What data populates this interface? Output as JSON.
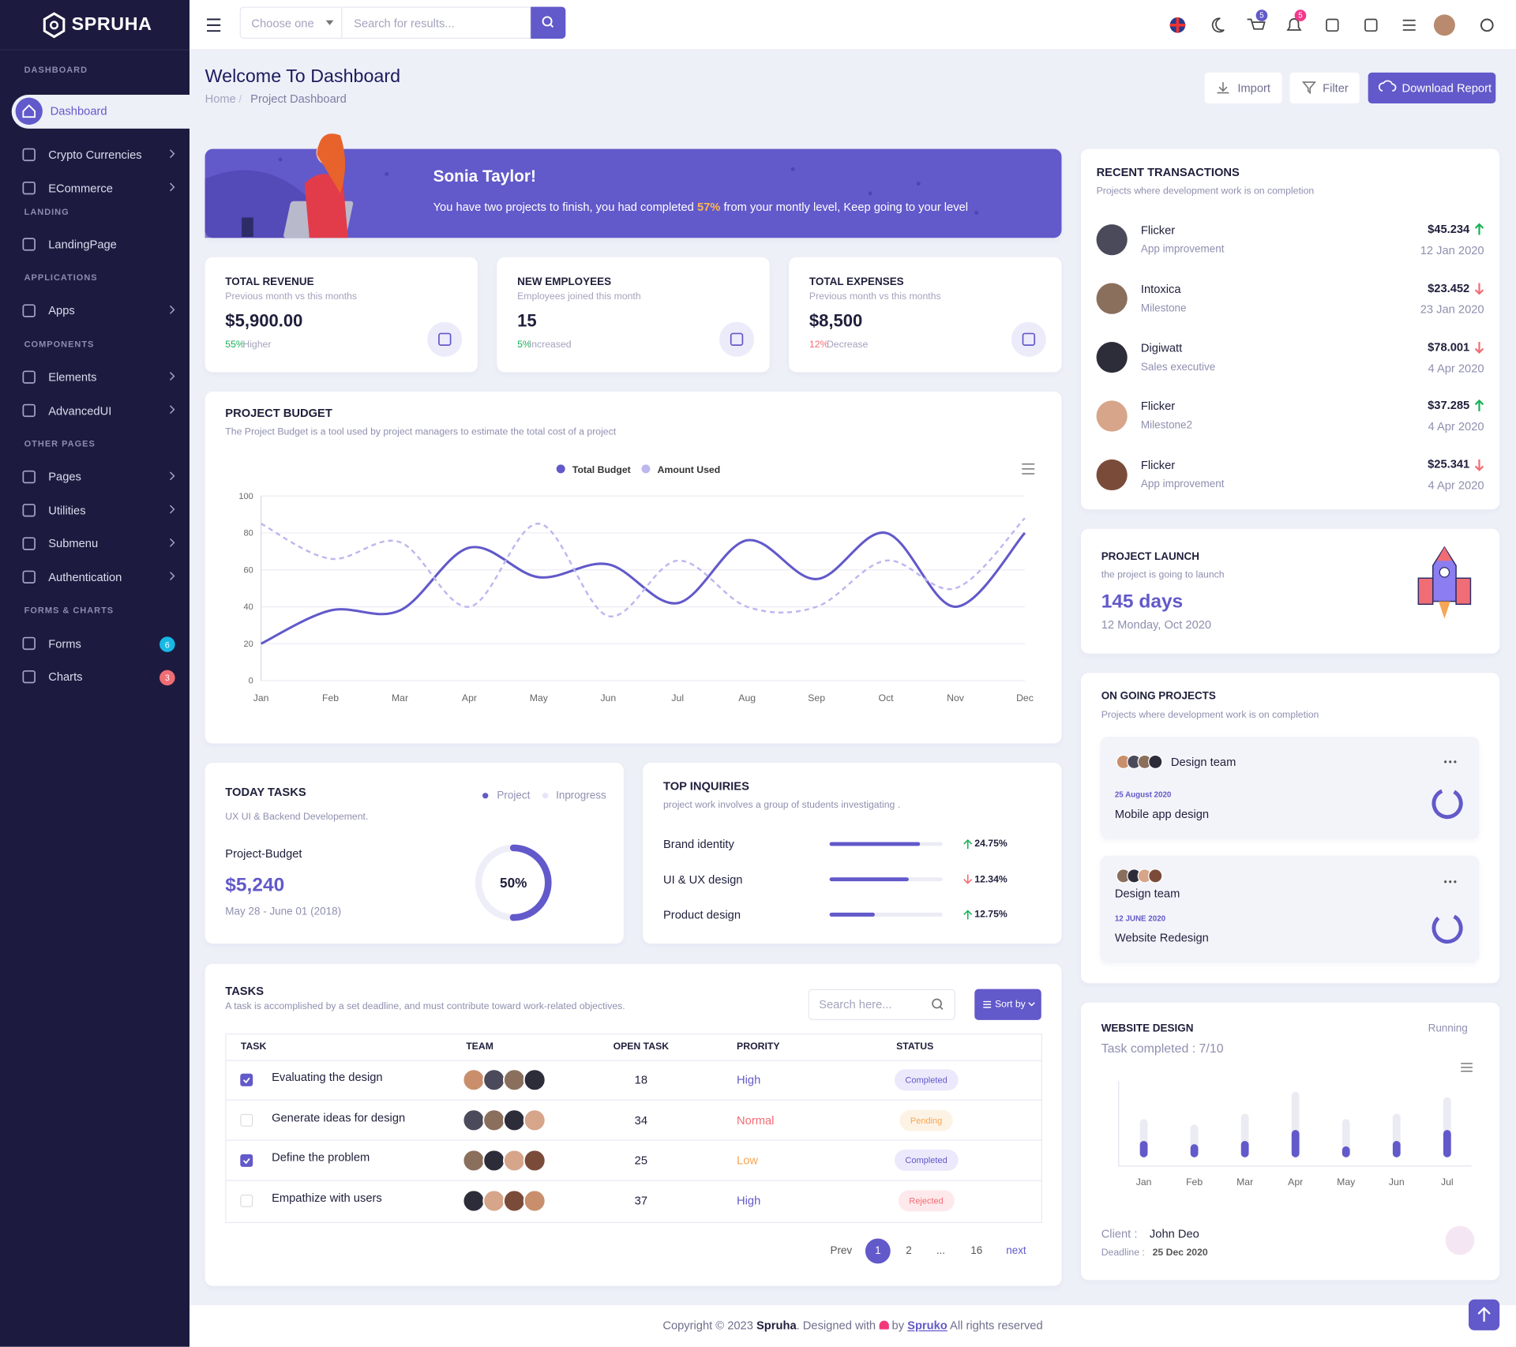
{
  "sidebar": {
    "brand": "SPRUHA",
    "sections": [
      {
        "title": "DASHBOARD",
        "items": [
          {
            "label": "Dashboard",
            "active": true
          },
          {
            "label": "Crypto Currencies",
            "submenu": true
          },
          {
            "label": "ECommerce",
            "submenu": true
          }
        ]
      },
      {
        "title": "LANDING",
        "items": [
          {
            "label": "LandingPage"
          }
        ]
      },
      {
        "title": "APPLICATIONS",
        "items": [
          {
            "label": "Apps",
            "submenu": true
          }
        ]
      },
      {
        "title": "COMPONENTS",
        "items": [
          {
            "label": "Elements",
            "submenu": true
          },
          {
            "label": "AdvancedUI",
            "submenu": true
          }
        ]
      },
      {
        "title": "OTHER PAGES",
        "items": [
          {
            "label": "Pages",
            "submenu": true
          },
          {
            "label": "Utilities",
            "submenu": true
          },
          {
            "label": "Submenu",
            "submenu": true
          },
          {
            "label": "Authentication",
            "submenu": true
          }
        ]
      },
      {
        "title": "FORMS & CHARTS",
        "items": [
          {
            "label": "Forms",
            "badge": "6",
            "badge_color": "#17b8e6"
          },
          {
            "label": "Charts",
            "badge": "3",
            "badge_color": "#f16d75"
          }
        ]
      }
    ]
  },
  "header": {
    "select_placeholder": "Choose one",
    "search_placeholder": "Search for results...",
    "cart_count": "5",
    "notification_count": "5"
  },
  "page_header": {
    "title": "Welcome To Dashboard",
    "breadcrumb": [
      "Home",
      "Project Dashboard"
    ],
    "buttons": [
      "Import",
      "Filter",
      "Download Report"
    ]
  },
  "banner": {
    "name": "Sonia Taylor!",
    "text_before": "You have two projects to finish, you had completed",
    "highlight": "57%",
    "text_after": "from your montly level, Keep going to your level"
  },
  "stats": [
    {
      "title": "TOTAL REVENUE",
      "subtitle": "Previous month vs this months",
      "value": "$5,900.00",
      "change": "55%",
      "change_text": "Higher",
      "change_color": "#19b159"
    },
    {
      "title": "NEW EMPLOYEES",
      "subtitle": "Employees joined this month",
      "value": "15",
      "change": "5%",
      "change_text": "Increased",
      "change_color": "#19b159"
    },
    {
      "title": "TOTAL EXPENSES",
      "subtitle": "Previous month vs this months",
      "value": "$8,500",
      "change": "12%",
      "change_text": "Decrease",
      "change_color": "#f16d75"
    }
  ],
  "project_budget": {
    "title": "PROJECT BUDGET",
    "subtitle": "The Project Budget is a tool used by project managers to estimate the total cost of a project",
    "chart_data": {
      "type": "line",
      "categories": [
        "Jan",
        "Feb",
        "Mar",
        "Apr",
        "May",
        "Jun",
        "Jul",
        "Aug",
        "Sep",
        "Oct",
        "Nov",
        "Dec"
      ],
      "series": [
        {
          "name": "Total Budget",
          "color": "#6259ca",
          "values": [
            20,
            38,
            38,
            72,
            56,
            63,
            42,
            76,
            55,
            80,
            40,
            80
          ]
        },
        {
          "name": "Amount Used",
          "color": "#bdb7ef",
          "dashed": true,
          "values": [
            85,
            66,
            75,
            40,
            85,
            35,
            65,
            40,
            40,
            65,
            50,
            88
          ]
        }
      ],
      "ylim": [
        0,
        100
      ],
      "yticks": [
        0,
        20,
        40,
        60,
        80,
        100
      ],
      "grid": true,
      "legend": "top"
    }
  },
  "today_tasks": {
    "title": "TODAY TASKS",
    "legend": [
      {
        "label": "Project",
        "color": "#6259ca"
      },
      {
        "label": "Inprogress",
        "color": "#e6e4f8"
      }
    ],
    "subtitle": "UX UI & Backend Developement.",
    "label": "Project-Budget",
    "amount": "$5,240",
    "date": "May 28 - June 01 (2018)",
    "progress": {
      "value": 50,
      "label": "50%"
    }
  },
  "top_inquiries": {
    "title": "TOP INQUIRIES",
    "subtitle": "project work involves a group of students investigating .",
    "items": [
      {
        "label": "Brand identity",
        "progress": 80,
        "change": "24.75%",
        "up": true
      },
      {
        "label": "UI & UX design",
        "progress": 70,
        "change": "12.34%",
        "up": false
      },
      {
        "label": "Product design",
        "progress": 40,
        "change": "12.75%",
        "up": true
      }
    ]
  },
  "tasks": {
    "title": "TASKS",
    "subtitle": "A task is accomplished by a set deadline, and must contribute toward work-related objectives.",
    "search_placeholder": "Search here...",
    "sort_button": "Sort by",
    "columns": [
      "TASK",
      "TEAM",
      "OPEN TASK",
      "PRORITY",
      "STATUS"
    ],
    "rows": [
      {
        "task": "Evaluating the design",
        "checked": true,
        "open_tasks": "18",
        "priority": "High",
        "priority_color": "#6259ca",
        "status": "Completed",
        "status_color": "#6259ca",
        "status_bg": "#ebe9fb"
      },
      {
        "task": "Generate ideas for design",
        "checked": false,
        "open_tasks": "34",
        "priority": "Normal",
        "priority_color": "#f16d75",
        "status": "Pending",
        "status_color": "#f7a556",
        "status_bg": "#fdf3e4"
      },
      {
        "task": "Define the problem",
        "checked": true,
        "open_tasks": "25",
        "priority": "Low",
        "priority_color": "#f7a556",
        "status": "Completed",
        "status_color": "#6259ca",
        "status_bg": "#ebe9fb"
      },
      {
        "task": "Empathize with users",
        "checked": false,
        "open_tasks": "37",
        "priority": "High",
        "priority_color": "#6259ca",
        "status": "Rejected",
        "status_color": "#f16d75",
        "status_bg": "#fde9eb"
      }
    ],
    "pagination": [
      "Prev",
      "1",
      "2",
      "...",
      "16",
      "next"
    ]
  },
  "transactions": {
    "title": "RECENT TRANSACTIONS",
    "subtitle": "Projects where development work is on completion",
    "items": [
      {
        "name": "Flicker",
        "detail": "App improvement",
        "amount": "$45.234",
        "date": "12 Jan 2020",
        "up": true
      },
      {
        "name": "Intoxica",
        "detail": "Milestone",
        "amount": "$23.452",
        "date": "23 Jan 2020",
        "up": false
      },
      {
        "name": "Digiwatt",
        "detail": "Sales executive",
        "amount": "$78.001",
        "date": "4 Apr 2020",
        "up": false
      },
      {
        "name": "Flicker",
        "detail": "Milestone2",
        "amount": "$37.285",
        "date": "4 Apr 2020",
        "up": true
      },
      {
        "name": "Flicker",
        "detail": "App improvement",
        "amount": "$25.341",
        "date": "4 Apr 2020",
        "up": false
      }
    ]
  },
  "project_launch": {
    "title": "PROJECT LAUNCH",
    "subtitle": "the project is going to launch",
    "days": "145 days",
    "date": "12 Monday, Oct 2020"
  },
  "ongoing_projects": {
    "title": "ON GOING PROJECTS",
    "subtitle": "Projects where development work is on completion",
    "projects": [
      {
        "team": "Design team",
        "date": "25 August 2020",
        "name": "Mobile app design",
        "progress": 85
      },
      {
        "team": "Design team",
        "date": "12 JUNE 2020",
        "name": "Website Redesign",
        "progress": 80
      }
    ]
  },
  "website_design": {
    "title": "WEBSITE DESIGN",
    "status": "Running",
    "completed": "Task completed : 7/10",
    "chart_data": {
      "type": "bar",
      "categories": [
        "Jan",
        "Feb",
        "Mar",
        "Apr",
        "May",
        "Jun",
        "Jul"
      ],
      "series": [
        {
          "color": "#ebebf3",
          "values": [
            35,
            30,
            40,
            60,
            35,
            40,
            55
          ]
        },
        {
          "color": "#6259ca",
          "values": [
            15,
            12,
            15,
            25,
            10,
            15,
            25
          ]
        }
      ],
      "ylim": [
        0,
        70
      ]
    },
    "client_label": "Client :",
    "client": "John Deo",
    "deadline_label": "Deadline :",
    "deadline": "25 Dec 2020"
  },
  "footer": {
    "copyright": "Copyright © 2023",
    "brand": "Spruha",
    "designed": ". Designed with",
    "by": "by",
    "company": "Spruko",
    "rights": "All rights reserved"
  }
}
